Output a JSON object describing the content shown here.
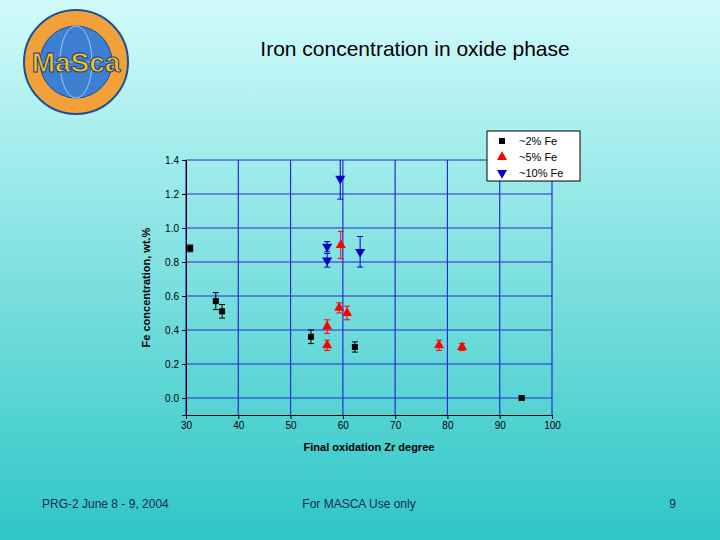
{
  "chart_data": {
    "type": "scatter",
    "title": "Iron concentration in oxide phase",
    "x_label": "Final oxidation Zr degree",
    "y_label": "Fe concentration, wt.%",
    "xlim": [
      30,
      100
    ],
    "xticks": [
      30,
      40,
      50,
      60,
      70,
      80,
      90,
      100
    ],
    "ylim": [
      -0.1,
      1.4
    ],
    "yticks": [
      {
        "value": 0,
        "label": "0.0"
      },
      0.2,
      0.4,
      0.6,
      0.8,
      {
        "value": 1,
        "label": "1.0"
      },
      1.2,
      1.4
    ],
    "grid": true,
    "legend": "upper right",
    "series": [
      {
        "name": "~2% Fe",
        "color": "#000000",
        "marker": "square",
        "x": [
          30.8,
          35.7,
          36.9,
          53.9,
          62.3,
          94.2
        ],
        "values": [
          0.88,
          0.57,
          0.51,
          0.36,
          0.3,
          0.0
        ],
        "errors": [
          0.02,
          0.05,
          0.04,
          0.04,
          0.03,
          0.01
        ]
      },
      {
        "name": "~5% Fe",
        "color": "#ff0000",
        "marker": "triangle-up",
        "x": [
          57.0,
          57.0,
          59.3,
          60.8,
          59.6,
          78.4,
          82.8
        ],
        "values": [
          0.42,
          0.31,
          0.53,
          0.5,
          0.9,
          0.31,
          0.3
        ],
        "errors": [
          0.04,
          0.03,
          0.03,
          0.04,
          0.08,
          0.03,
          0.02
        ]
      },
      {
        "name": "~10% Fe",
        "color": "#0000cc",
        "marker": "triangle-down",
        "x": [
          57.0,
          57.0,
          59.5,
          63.3
        ],
        "values": [
          0.89,
          0.81,
          1.29,
          0.86
        ],
        "errors": [
          0.03,
          0.04,
          0.12,
          0.09
        ]
      }
    ]
  },
  "slide": {
    "logo_text": "MaSca",
    "footer_left": "PRG-2 June 8 - 9, 2004",
    "footer_center": "For MASCA Use only",
    "page": 9
  }
}
